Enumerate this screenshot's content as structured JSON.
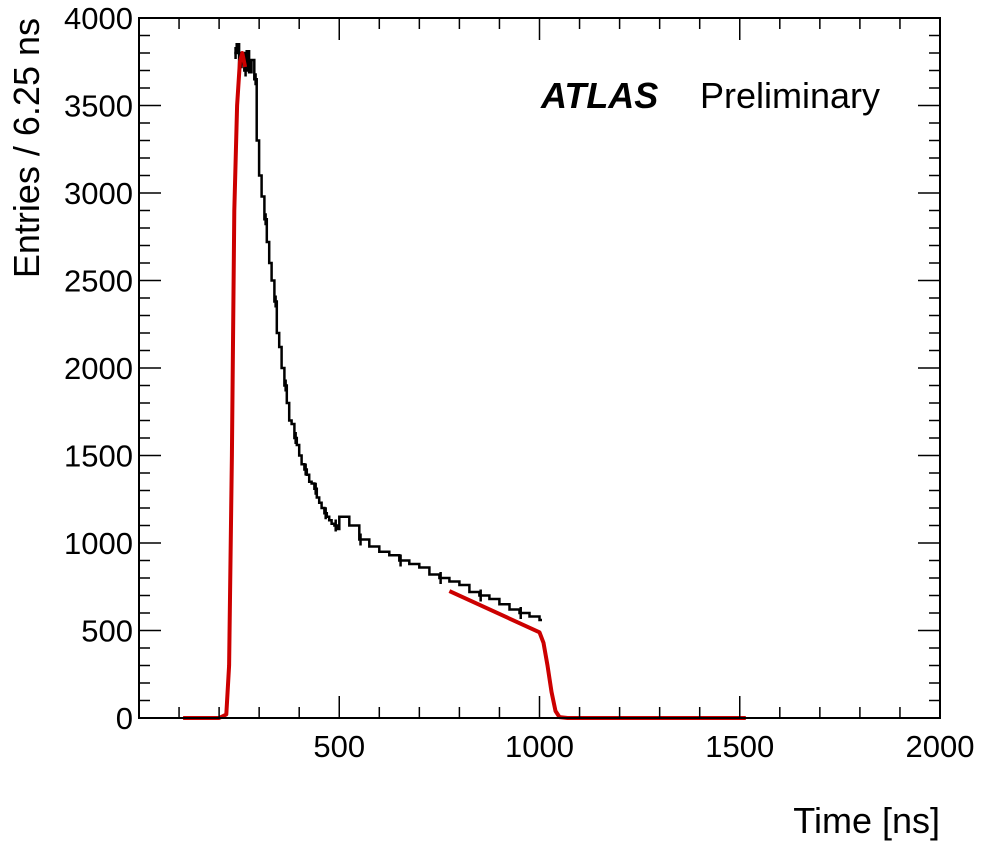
{
  "chart_data": {
    "type": "line",
    "title": "",
    "annotation_bold": "ATLAS",
    "annotation_text": "Preliminary",
    "xlabel": "Time [ns]",
    "ylabel": "Entries / 6.25 ns",
    "xlim": [
      0,
      2000
    ],
    "ylim": [
      0,
      4000
    ],
    "xticks": [
      500,
      1000,
      1500,
      2000
    ],
    "yticks": [
      0,
      500,
      1000,
      1500,
      2000,
      2500,
      3000,
      3500,
      4000
    ],
    "grid": false,
    "colors": {
      "histogram": "#000000",
      "fit": "#cc0000"
    },
    "series": [
      {
        "style": "step",
        "bin_width": 6.25,
        "x": [
          238,
          244,
          250,
          256,
          263,
          269,
          275,
          281,
          288,
          294,
          300,
          306,
          313,
          319,
          325,
          331,
          338,
          344,
          350,
          356,
          363,
          369,
          375,
          381,
          388,
          394,
          400,
          406,
          413,
          419,
          425,
          431,
          438,
          444,
          450,
          456,
          463,
          469,
          475,
          481,
          488,
          494,
          500,
          525,
          550,
          575,
          600,
          625,
          650,
          675,
          700,
          725,
          750,
          775,
          800,
          825,
          850,
          875,
          900,
          925,
          950,
          975,
          1000
        ],
        "values": [
          3800,
          3850,
          3720,
          3800,
          3700,
          3810,
          3690,
          3760,
          3650,
          3300,
          3100,
          2980,
          2850,
          2720,
          2600,
          2500,
          2380,
          2200,
          2120,
          2000,
          1900,
          1800,
          1700,
          1680,
          1600,
          1560,
          1500,
          1450,
          1420,
          1390,
          1350,
          1340,
          1310,
          1260,
          1230,
          1200,
          1170,
          1150,
          1130,
          1110,
          1100,
          1080,
          1150,
          1100,
          1020,
          980,
          950,
          930,
          900,
          880,
          860,
          820,
          800,
          780,
          760,
          720,
          700,
          680,
          650,
          620,
          600,
          580,
          560
        ]
      },
      {
        "style": "fit",
        "x": [
          110,
          200,
          218,
          225,
          232,
          238,
          245,
          252,
          258,
          265
        ],
        "values": [
          0,
          0,
          20,
          300,
          1500,
          2900,
          3500,
          3750,
          3800,
          3720
        ]
      },
      {
        "style": "fit",
        "x": [
          775,
          1000,
          1010,
          1020,
          1030,
          1040,
          1050,
          1070,
          1100,
          1300,
          1515
        ],
        "values": [
          725,
          490,
          430,
          300,
          150,
          40,
          5,
          0,
          0,
          0,
          0
        ]
      }
    ]
  }
}
